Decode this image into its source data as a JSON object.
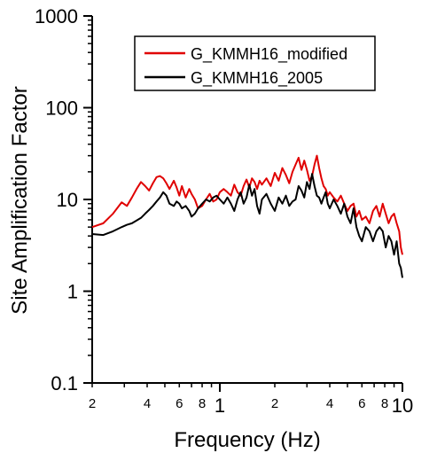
{
  "chart_data": {
    "type": "line",
    "title": "",
    "xlabel": "Frequency (Hz)",
    "ylabel": "Site Amplification Factor",
    "xscale": "log",
    "yscale": "log",
    "xlim": [
      0.2,
      10
    ],
    "ylim": [
      0.1,
      1000
    ],
    "grid": false,
    "legend_position": "top-right",
    "x_major_ticks": [
      {
        "value": 1,
        "label": "1"
      },
      {
        "value": 10,
        "label": "10"
      }
    ],
    "x_minor_ticks": [
      {
        "value": 0.2,
        "label": "2"
      },
      {
        "value": 0.3,
        "label": ""
      },
      {
        "value": 0.4,
        "label": "4"
      },
      {
        "value": 0.5,
        "label": ""
      },
      {
        "value": 0.6,
        "label": "6"
      },
      {
        "value": 0.7,
        "label": ""
      },
      {
        "value": 0.8,
        "label": "8"
      },
      {
        "value": 0.9,
        "label": ""
      },
      {
        "value": 2,
        "label": "2"
      },
      {
        "value": 3,
        "label": ""
      },
      {
        "value": 4,
        "label": "4"
      },
      {
        "value": 5,
        "label": ""
      },
      {
        "value": 6,
        "label": "6"
      },
      {
        "value": 7,
        "label": ""
      },
      {
        "value": 8,
        "label": "8"
      },
      {
        "value": 9,
        "label": ""
      }
    ],
    "y_ticks": [
      {
        "value": 0.1,
        "label": "0.1"
      },
      {
        "value": 1,
        "label": "1"
      },
      {
        "value": 10,
        "label": "10"
      },
      {
        "value": 100,
        "label": "100"
      },
      {
        "value": 1000,
        "label": "1000"
      }
    ],
    "series": [
      {
        "name": "G_KMMH16_modified",
        "color": "#e00000",
        "x": [
          0.2,
          0.23,
          0.26,
          0.29,
          0.31,
          0.33,
          0.35,
          0.37,
          0.39,
          0.41,
          0.43,
          0.45,
          0.47,
          0.49,
          0.51,
          0.53,
          0.56,
          0.58,
          0.6,
          0.62,
          0.65,
          0.68,
          0.7,
          0.73,
          0.76,
          0.8,
          0.84,
          0.88,
          0.92,
          0.96,
          1.0,
          1.05,
          1.1,
          1.15,
          1.2,
          1.25,
          1.3,
          1.35,
          1.4,
          1.45,
          1.5,
          1.55,
          1.6,
          1.65,
          1.7,
          1.8,
          1.9,
          2.0,
          2.1,
          2.2,
          2.3,
          2.4,
          2.5,
          2.6,
          2.7,
          2.8,
          2.9,
          3.0,
          3.1,
          3.2,
          3.3,
          3.4,
          3.5,
          3.6,
          3.7,
          3.8,
          3.9,
          4.0,
          4.2,
          4.4,
          4.6,
          4.8,
          5.0,
          5.2,
          5.4,
          5.6,
          5.8,
          6.0,
          6.3,
          6.6,
          6.9,
          7.2,
          7.5,
          7.8,
          8.1,
          8.4,
          8.7,
          9.0,
          9.3,
          9.6,
          9.8,
          10.0
        ],
        "y": [
          5.0,
          5.5,
          7.0,
          9.3,
          8.5,
          10.5,
          13.0,
          15.5,
          14.0,
          12.5,
          15.0,
          17.5,
          18.0,
          17.0,
          15.0,
          13.0,
          16.0,
          13.5,
          11.0,
          14.0,
          10.5,
          13.0,
          11.5,
          10.0,
          8.0,
          8.5,
          10.0,
          11.5,
          9.5,
          10.0,
          12.0,
          13.0,
          12.0,
          11.0,
          14.5,
          12.0,
          11.0,
          14.0,
          16.5,
          13.5,
          17.0,
          15.5,
          13.0,
          16.0,
          14.5,
          17.0,
          14.0,
          19.5,
          16.0,
          22.0,
          18.5,
          15.0,
          20.0,
          24.0,
          28.5,
          21.0,
          26.5,
          21.0,
          16.0,
          18.0,
          24.0,
          30.0,
          22.0,
          17.0,
          14.0,
          13.0,
          11.0,
          12.0,
          10.5,
          9.5,
          11.0,
          9.0,
          7.5,
          8.5,
          9.0,
          6.5,
          7.5,
          6.0,
          6.5,
          5.5,
          7.5,
          8.5,
          6.5,
          9.0,
          7.0,
          5.5,
          6.5,
          7.0,
          5.5,
          4.5,
          3.0,
          2.5
        ]
      },
      {
        "name": "G_KMMH16_2005",
        "color": "#000000",
        "x": [
          0.2,
          0.23,
          0.26,
          0.29,
          0.31,
          0.33,
          0.35,
          0.37,
          0.39,
          0.41,
          0.43,
          0.45,
          0.47,
          0.49,
          0.51,
          0.53,
          0.56,
          0.58,
          0.6,
          0.62,
          0.65,
          0.68,
          0.7,
          0.73,
          0.76,
          0.8,
          0.84,
          0.88,
          0.92,
          0.96,
          1.0,
          1.05,
          1.1,
          1.15,
          1.2,
          1.25,
          1.3,
          1.35,
          1.4,
          1.45,
          1.5,
          1.55,
          1.6,
          1.65,
          1.7,
          1.8,
          1.9,
          2.0,
          2.1,
          2.2,
          2.3,
          2.4,
          2.5,
          2.6,
          2.7,
          2.8,
          2.9,
          3.0,
          3.1,
          3.2,
          3.3,
          3.4,
          3.5,
          3.6,
          3.7,
          3.8,
          3.9,
          4.0,
          4.2,
          4.4,
          4.6,
          4.8,
          5.0,
          5.2,
          5.4,
          5.6,
          5.8,
          6.0,
          6.3,
          6.6,
          6.9,
          7.2,
          7.5,
          7.8,
          8.1,
          8.4,
          8.7,
          9.0,
          9.3,
          9.6,
          9.8,
          10.0
        ],
        "y": [
          4.2,
          4.1,
          4.5,
          5.0,
          5.3,
          5.5,
          5.9,
          6.3,
          7.0,
          7.7,
          8.5,
          9.5,
          10.5,
          12.0,
          11.0,
          9.0,
          8.5,
          9.5,
          9.0,
          8.0,
          8.5,
          7.5,
          6.5,
          7.0,
          8.0,
          9.0,
          10.0,
          9.5,
          10.5,
          11.0,
          10.0,
          9.0,
          10.5,
          9.0,
          7.5,
          10.0,
          12.0,
          9.0,
          10.5,
          14.5,
          11.0,
          13.0,
          8.5,
          7.0,
          10.0,
          11.5,
          9.0,
          7.5,
          10.5,
          9.0,
          11.0,
          8.5,
          9.5,
          10.0,
          14.0,
          12.5,
          10.5,
          15.5,
          13.0,
          19.0,
          14.0,
          11.0,
          10.5,
          9.0,
          10.5,
          12.0,
          9.0,
          8.0,
          10.0,
          8.5,
          7.0,
          9.0,
          6.5,
          5.5,
          8.0,
          5.0,
          4.0,
          3.5,
          5.0,
          4.5,
          3.5,
          4.5,
          5.0,
          4.5,
          3.0,
          4.0,
          3.5,
          2.5,
          3.5,
          2.0,
          1.8,
          1.4
        ]
      }
    ]
  }
}
